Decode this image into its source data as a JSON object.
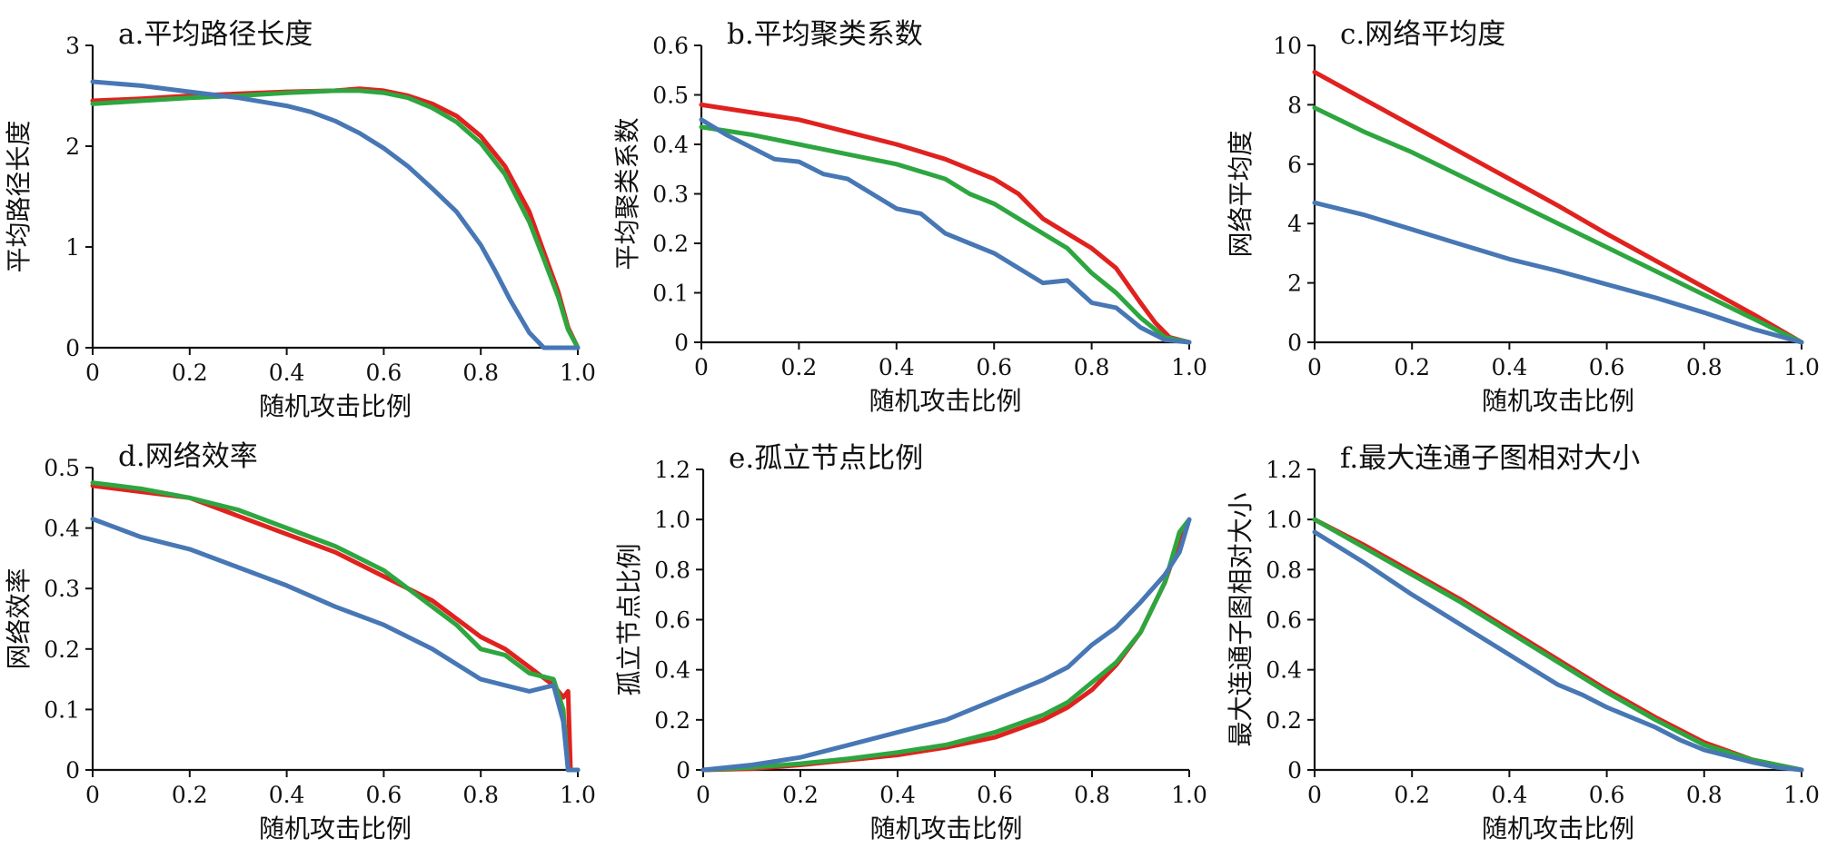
{
  "colors": {
    "red": "#e0221f",
    "green": "#2ea640",
    "blue": "#4777b4"
  },
  "chart_data": [
    {
      "type": "line",
      "panel": "a",
      "title": "a.平均路径长度",
      "xlabel": "随机攻击比例",
      "ylabel": "平均路径长度",
      "xlim": [
        0,
        1
      ],
      "ylim": [
        0,
        3
      ],
      "xticks": [
        0,
        0.2,
        0.4,
        0.6,
        0.8,
        1.0
      ],
      "xtick_labels": [
        "0",
        "0.2",
        "0.4",
        "0.6",
        "0.8",
        "1.0"
      ],
      "yticks": [
        0,
        1,
        2,
        3
      ],
      "ytick_labels": [
        "0",
        "1",
        "2",
        "3"
      ],
      "series": [
        {
          "color": "red",
          "x": [
            0,
            0.1,
            0.2,
            0.3,
            0.4,
            0.5,
            0.55,
            0.6,
            0.65,
            0.7,
            0.75,
            0.8,
            0.85,
            0.9,
            0.93,
            0.96,
            0.98,
            1.0
          ],
          "y": [
            2.45,
            2.47,
            2.5,
            2.52,
            2.54,
            2.55,
            2.57,
            2.55,
            2.5,
            2.42,
            2.3,
            2.1,
            1.8,
            1.35,
            0.95,
            0.55,
            0.2,
            0
          ]
        },
        {
          "color": "green",
          "x": [
            0,
            0.1,
            0.2,
            0.3,
            0.4,
            0.5,
            0.55,
            0.6,
            0.65,
            0.7,
            0.75,
            0.8,
            0.85,
            0.9,
            0.93,
            0.96,
            0.98,
            1.0
          ],
          "y": [
            2.42,
            2.45,
            2.48,
            2.5,
            2.53,
            2.55,
            2.55,
            2.53,
            2.48,
            2.38,
            2.24,
            2.03,
            1.72,
            1.25,
            0.88,
            0.5,
            0.18,
            0
          ]
        },
        {
          "color": "blue",
          "x": [
            0,
            0.1,
            0.2,
            0.3,
            0.4,
            0.45,
            0.5,
            0.55,
            0.6,
            0.65,
            0.7,
            0.75,
            0.8,
            0.83,
            0.86,
            0.9,
            0.93,
            1.0
          ],
          "y": [
            2.64,
            2.6,
            2.54,
            2.48,
            2.4,
            2.34,
            2.25,
            2.13,
            1.98,
            1.8,
            1.58,
            1.35,
            1.02,
            0.76,
            0.48,
            0.15,
            0,
            0
          ]
        }
      ]
    },
    {
      "type": "line",
      "panel": "b",
      "title": "b.平均聚类系数",
      "xlabel": "随机攻击比例",
      "ylabel": "平均聚类系数",
      "xlim": [
        0,
        1
      ],
      "ylim": [
        0,
        0.6
      ],
      "xticks": [
        0,
        0.2,
        0.4,
        0.6,
        0.8,
        1.0
      ],
      "xtick_labels": [
        "0",
        "0.2",
        "0.4",
        "0.6",
        "0.8",
        "1.0"
      ],
      "yticks": [
        0,
        0.1,
        0.2,
        0.3,
        0.4,
        0.5,
        0.6
      ],
      "ytick_labels": [
        "0",
        "0.1",
        "0.2",
        "0.3",
        "0.4",
        "0.5",
        "0.6"
      ],
      "series": [
        {
          "color": "red",
          "x": [
            0,
            0.1,
            0.2,
            0.3,
            0.4,
            0.5,
            0.6,
            0.65,
            0.7,
            0.75,
            0.8,
            0.85,
            0.9,
            0.93,
            0.96,
            1.0
          ],
          "y": [
            0.48,
            0.465,
            0.45,
            0.425,
            0.4,
            0.37,
            0.33,
            0.3,
            0.25,
            0.22,
            0.19,
            0.15,
            0.08,
            0.04,
            0.01,
            0
          ]
        },
        {
          "color": "green",
          "x": [
            0,
            0.1,
            0.2,
            0.3,
            0.4,
            0.5,
            0.55,
            0.6,
            0.65,
            0.7,
            0.75,
            0.8,
            0.85,
            0.9,
            0.95,
            1.0
          ],
          "y": [
            0.435,
            0.42,
            0.4,
            0.38,
            0.36,
            0.33,
            0.3,
            0.28,
            0.25,
            0.22,
            0.19,
            0.14,
            0.1,
            0.05,
            0.01,
            0
          ]
        },
        {
          "color": "blue",
          "x": [
            0,
            0.05,
            0.1,
            0.15,
            0.2,
            0.25,
            0.3,
            0.35,
            0.4,
            0.45,
            0.5,
            0.55,
            0.6,
            0.65,
            0.7,
            0.75,
            0.8,
            0.85,
            0.9,
            0.95,
            1.0
          ],
          "y": [
            0.45,
            0.42,
            0.395,
            0.37,
            0.365,
            0.34,
            0.33,
            0.3,
            0.27,
            0.26,
            0.22,
            0.2,
            0.18,
            0.15,
            0.12,
            0.125,
            0.08,
            0.07,
            0.03,
            0.005,
            0
          ]
        }
      ]
    },
    {
      "type": "line",
      "panel": "c",
      "title": "c.网络平均度",
      "xlabel": "随机攻击比例",
      "ylabel": "网络平均度",
      "xlim": [
        0,
        1
      ],
      "ylim": [
        0,
        10
      ],
      "xticks": [
        0,
        0.2,
        0.4,
        0.6,
        0.8,
        1.0
      ],
      "xtick_labels": [
        "0",
        "0.2",
        "0.4",
        "0.6",
        "0.8",
        "1.0"
      ],
      "yticks": [
        0,
        2,
        4,
        6,
        8,
        10
      ],
      "ytick_labels": [
        "0",
        "2",
        "4",
        "6",
        "8",
        "10"
      ],
      "series": [
        {
          "color": "red",
          "x": [
            0,
            0.1,
            0.2,
            0.3,
            0.4,
            0.5,
            0.6,
            0.7,
            0.8,
            0.9,
            1.0
          ],
          "y": [
            9.1,
            8.2,
            7.3,
            6.4,
            5.5,
            4.6,
            3.65,
            2.75,
            1.85,
            0.95,
            0
          ]
        },
        {
          "color": "green",
          "x": [
            0,
            0.1,
            0.2,
            0.3,
            0.4,
            0.5,
            0.6,
            0.7,
            0.8,
            0.9,
            1.0
          ],
          "y": [
            7.9,
            7.1,
            6.4,
            5.6,
            4.8,
            4.0,
            3.2,
            2.4,
            1.6,
            0.8,
            0
          ]
        },
        {
          "color": "blue",
          "x": [
            0,
            0.1,
            0.2,
            0.3,
            0.4,
            0.5,
            0.6,
            0.7,
            0.8,
            0.9,
            1.0
          ],
          "y": [
            4.7,
            4.3,
            3.8,
            3.3,
            2.8,
            2.4,
            1.95,
            1.5,
            1.0,
            0.45,
            0
          ]
        }
      ]
    },
    {
      "type": "line",
      "panel": "d",
      "title": "d.网络效率",
      "xlabel": "随机攻击比例",
      "ylabel": "网络效率",
      "xlim": [
        0,
        1
      ],
      "ylim": [
        0,
        0.5
      ],
      "xticks": [
        0,
        0.2,
        0.4,
        0.6,
        0.8,
        1.0
      ],
      "xtick_labels": [
        "0",
        "0.2",
        "0.4",
        "0.6",
        "0.8",
        "1.0"
      ],
      "yticks": [
        0,
        0.1,
        0.2,
        0.3,
        0.4,
        0.5
      ],
      "ytick_labels": [
        "0",
        "0.1",
        "0.2",
        "0.3",
        "0.4",
        "0.5"
      ],
      "series": [
        {
          "color": "red",
          "x": [
            0,
            0.1,
            0.2,
            0.3,
            0.4,
            0.5,
            0.6,
            0.7,
            0.8,
            0.85,
            0.9,
            0.95,
            0.97,
            0.98,
            0.985,
            1.0
          ],
          "y": [
            0.47,
            0.46,
            0.45,
            0.42,
            0.39,
            0.36,
            0.32,
            0.28,
            0.22,
            0.2,
            0.17,
            0.14,
            0.12,
            0.13,
            0,
            0
          ]
        },
        {
          "color": "green",
          "x": [
            0,
            0.1,
            0.2,
            0.3,
            0.4,
            0.5,
            0.6,
            0.7,
            0.75,
            0.8,
            0.85,
            0.9,
            0.95,
            0.97,
            0.98,
            1.0
          ],
          "y": [
            0.475,
            0.465,
            0.45,
            0.43,
            0.4,
            0.37,
            0.33,
            0.27,
            0.24,
            0.2,
            0.19,
            0.16,
            0.15,
            0.1,
            0,
            0
          ]
        },
        {
          "color": "blue",
          "x": [
            0,
            0.1,
            0.2,
            0.3,
            0.4,
            0.5,
            0.6,
            0.65,
            0.7,
            0.75,
            0.8,
            0.85,
            0.9,
            0.95,
            0.97,
            0.98,
            1.0
          ],
          "y": [
            0.415,
            0.385,
            0.365,
            0.335,
            0.305,
            0.27,
            0.24,
            0.22,
            0.2,
            0.175,
            0.15,
            0.14,
            0.13,
            0.14,
            0.08,
            0,
            0
          ]
        }
      ]
    },
    {
      "type": "line",
      "panel": "e",
      "title": "e.孤立节点比例",
      "xlabel": "随机攻击比例",
      "ylabel": "孤立节点比例",
      "xlim": [
        0,
        1
      ],
      "ylim": [
        0,
        1.2
      ],
      "xticks": [
        0,
        0.2,
        0.4,
        0.6,
        0.8,
        1.0
      ],
      "xtick_labels": [
        "0",
        "0.2",
        "0.4",
        "0.6",
        "0.8",
        "1.0"
      ],
      "yticks": [
        0,
        0.2,
        0.4,
        0.6,
        0.8,
        1.0,
        1.2
      ],
      "ytick_labels": [
        "0",
        "0.2",
        "0.4",
        "0.6",
        "0.8",
        "1.0",
        "1.2"
      ],
      "series": [
        {
          "color": "red",
          "x": [
            0,
            0.1,
            0.2,
            0.3,
            0.4,
            0.5,
            0.6,
            0.7,
            0.75,
            0.8,
            0.85,
            0.9,
            0.95,
            0.98,
            1.0
          ],
          "y": [
            0,
            0.005,
            0.02,
            0.04,
            0.06,
            0.09,
            0.13,
            0.2,
            0.25,
            0.32,
            0.42,
            0.55,
            0.75,
            0.92,
            1.0
          ]
        },
        {
          "color": "green",
          "x": [
            0,
            0.1,
            0.2,
            0.3,
            0.4,
            0.5,
            0.6,
            0.7,
            0.75,
            0.8,
            0.85,
            0.9,
            0.95,
            0.98,
            1.0
          ],
          "y": [
            0,
            0.01,
            0.025,
            0.045,
            0.07,
            0.1,
            0.15,
            0.22,
            0.27,
            0.35,
            0.43,
            0.55,
            0.75,
            0.95,
            1.0
          ]
        },
        {
          "color": "blue",
          "x": [
            0,
            0.1,
            0.2,
            0.3,
            0.4,
            0.5,
            0.6,
            0.65,
            0.7,
            0.75,
            0.8,
            0.85,
            0.9,
            0.95,
            0.98,
            1.0
          ],
          "y": [
            0,
            0.02,
            0.05,
            0.1,
            0.15,
            0.2,
            0.28,
            0.32,
            0.36,
            0.41,
            0.5,
            0.57,
            0.67,
            0.78,
            0.87,
            1.0
          ]
        }
      ]
    },
    {
      "type": "line",
      "panel": "f",
      "title": "f.最大连通子图相对大小",
      "xlabel": "随机攻击比例",
      "ylabel": "最大连通子图相对大小",
      "xlim": [
        0,
        1
      ],
      "ylim": [
        0,
        1.2
      ],
      "xticks": [
        0,
        0.2,
        0.4,
        0.6,
        0.8,
        1.0
      ],
      "xtick_labels": [
        "0",
        "0.2",
        "0.4",
        "0.6",
        "0.8",
        "1.0"
      ],
      "yticks": [
        0,
        0.2,
        0.4,
        0.6,
        0.8,
        1.0,
        1.2
      ],
      "ytick_labels": [
        "0",
        "0.2",
        "0.4",
        "0.6",
        "0.8",
        "1.0",
        "1.2"
      ],
      "series": [
        {
          "color": "red",
          "x": [
            0,
            0.1,
            0.2,
            0.3,
            0.4,
            0.5,
            0.6,
            0.7,
            0.8,
            0.9,
            0.95,
            1.0
          ],
          "y": [
            1.0,
            0.9,
            0.79,
            0.68,
            0.56,
            0.44,
            0.32,
            0.21,
            0.11,
            0.04,
            0.02,
            0
          ]
        },
        {
          "color": "green",
          "x": [
            0,
            0.1,
            0.2,
            0.3,
            0.4,
            0.5,
            0.6,
            0.7,
            0.8,
            0.9,
            0.95,
            1.0
          ],
          "y": [
            1.0,
            0.89,
            0.78,
            0.67,
            0.55,
            0.43,
            0.31,
            0.2,
            0.1,
            0.04,
            0.02,
            0
          ]
        },
        {
          "color": "blue",
          "x": [
            0,
            0.1,
            0.2,
            0.3,
            0.4,
            0.45,
            0.5,
            0.55,
            0.6,
            0.7,
            0.75,
            0.8,
            0.9,
            0.95,
            1.0
          ],
          "y": [
            0.95,
            0.83,
            0.7,
            0.58,
            0.46,
            0.4,
            0.34,
            0.3,
            0.25,
            0.17,
            0.12,
            0.08,
            0.03,
            0.01,
            0
          ]
        }
      ]
    }
  ]
}
